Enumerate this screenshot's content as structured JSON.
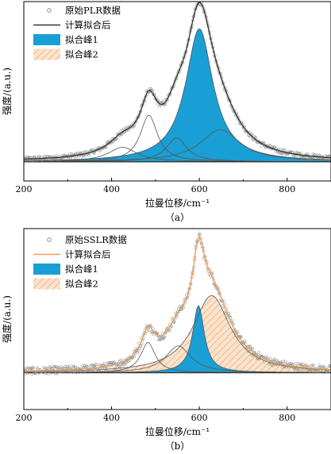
{
  "chart_data": [
    {
      "panel_label": "（a）",
      "type": "line",
      "xlabel": "拉曼位移/cm⁻¹",
      "ylabel": "强度/(a.u.)",
      "xlim": [
        200,
        900
      ],
      "xticks": [
        200,
        400,
        600,
        800
      ],
      "yticks_shown": false,
      "legend": {
        "position": "top-left",
        "entries": [
          "原始PLR数据",
          "计算拟合后",
          "拟合峰1",
          "拟合峰2"
        ]
      },
      "series": [
        {
          "name": "原始PLR数据",
          "kind": "scatter-open-circles",
          "color": "#777777"
        },
        {
          "name": "计算拟合后",
          "kind": "line",
          "color": "#333333"
        },
        {
          "name": "拟合峰1",
          "kind": "filled-peak",
          "color": "#1a9fd4",
          "center": 600,
          "height": 0.83,
          "width": 38
        },
        {
          "name": "拟合峰2",
          "kind": "hatched-peak",
          "color": "#f5c69b",
          "center": 648,
          "height": 0.2,
          "width": 55
        }
      ],
      "other_peaks": [
        {
          "center": 425,
          "height": 0.09,
          "width": 40
        },
        {
          "center": 485,
          "height": 0.29,
          "width": 24
        },
        {
          "center": 548,
          "height": 0.15,
          "width": 28
        }
      ],
      "ylim": [
        -0.12,
        1.0
      ]
    },
    {
      "panel_label": "（b）",
      "type": "line",
      "xlabel": "拉曼位移/cm⁻¹",
      "ylabel": "强度/(a.u.)",
      "xlim": [
        200,
        900
      ],
      "xticks": [
        200,
        400,
        600,
        800
      ],
      "yticks_shown": false,
      "legend": {
        "position": "top-left",
        "entries": [
          "原始SSLR数据",
          "计算拟合后",
          "拟合峰1",
          "拟合峰2"
        ]
      },
      "series": [
        {
          "name": "原始SSLR数据",
          "kind": "scatter-open-circles",
          "color": "#777777"
        },
        {
          "name": "计算拟合后",
          "kind": "line",
          "color": "#f0a050"
        },
        {
          "name": "拟合峰1",
          "kind": "filled-peak",
          "color": "#1a9fd4",
          "center": 598,
          "height": 0.4,
          "width": 16
        },
        {
          "name": "拟合峰2",
          "kind": "hatched-peak",
          "color": "#f5c69b",
          "center": 628,
          "height": 0.46,
          "width": 52
        }
      ],
      "other_peaks": [
        {
          "center": 483,
          "height": 0.18,
          "width": 20
        },
        {
          "center": 552,
          "height": 0.16,
          "width": 35
        }
      ],
      "ylim": [
        -0.22,
        0.86
      ]
    }
  ]
}
